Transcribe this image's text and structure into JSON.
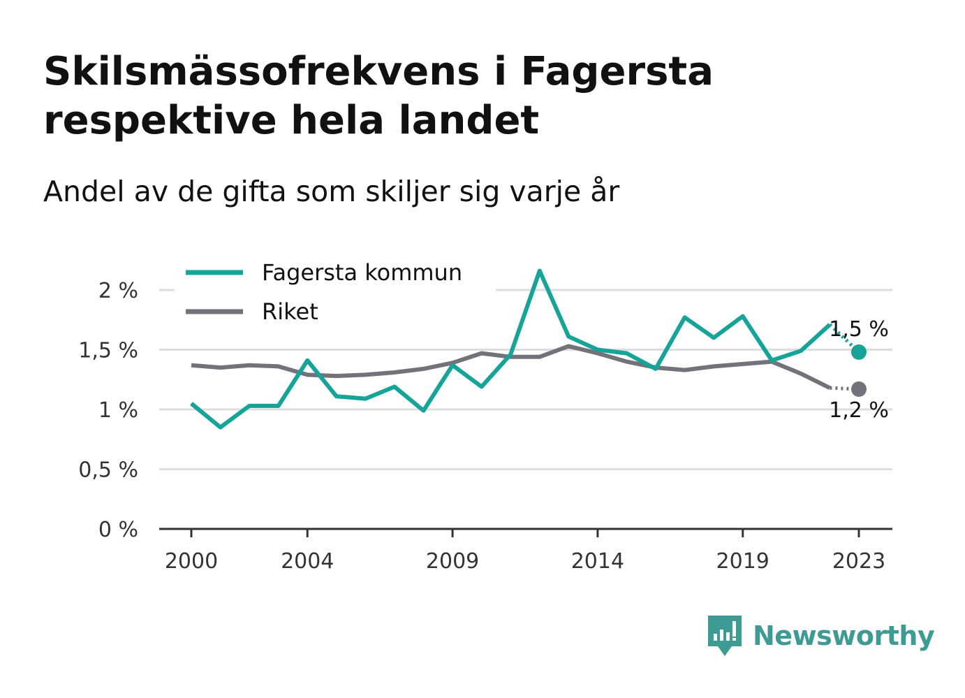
{
  "header": {
    "title": "Skilsmässofrekvens i Fagersta respektive hela landet",
    "subtitle": "Andel av de gifta som skiljer sig varje år"
  },
  "brand": {
    "name": "Newsworthy",
    "color": "#3d9b93"
  },
  "chart_data": {
    "type": "line",
    "x": [
      2000,
      2001,
      2002,
      2003,
      2004,
      2005,
      2006,
      2007,
      2008,
      2009,
      2010,
      2011,
      2012,
      2013,
      2014,
      2015,
      2016,
      2017,
      2018,
      2019,
      2020,
      2021,
      2022,
      2023
    ],
    "x_ticks": [
      2000,
      2004,
      2009,
      2014,
      2019,
      2023
    ],
    "x_tick_labels": [
      "2000",
      "2004",
      "2009",
      "2014",
      "2019",
      "2023"
    ],
    "y_ticks": [
      0,
      0.5,
      1,
      1.5,
      2
    ],
    "y_tick_labels": [
      "0 %",
      "0,5 %",
      "1 %",
      "1,5 %",
      "2 %"
    ],
    "ylim": [
      0,
      2.2
    ],
    "xlim": [
      2000,
      2023
    ],
    "grid": true,
    "legend_placement": "top-left",
    "series": [
      {
        "name": "Fagersta kommun",
        "color": "#16a398",
        "values": [
          1.05,
          0.85,
          1.03,
          1.03,
          1.41,
          1.11,
          1.09,
          1.19,
          0.99,
          1.37,
          1.19,
          1.46,
          2.16,
          1.61,
          1.5,
          1.47,
          1.34,
          1.77,
          1.6,
          1.78,
          1.41,
          1.49,
          1.71,
          1.48
        ],
        "end_label": "1,5 %"
      },
      {
        "name": "Riket",
        "color": "#737179",
        "values": [
          1.37,
          1.35,
          1.37,
          1.36,
          1.29,
          1.28,
          1.29,
          1.31,
          1.34,
          1.39,
          1.47,
          1.44,
          1.44,
          1.53,
          1.47,
          1.4,
          1.35,
          1.33,
          1.36,
          1.38,
          1.4,
          1.3,
          1.18,
          1.17
        ],
        "end_label": "1,2 %"
      }
    ]
  }
}
